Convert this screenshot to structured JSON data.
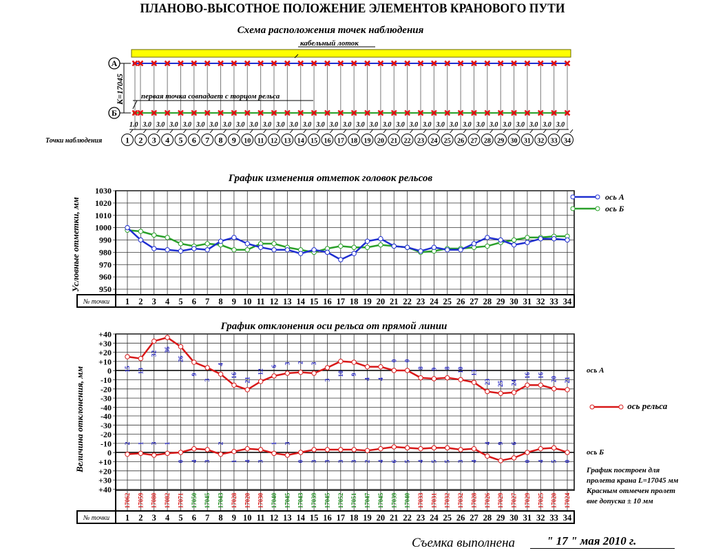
{
  "header": {
    "title": "ПЛАНОВО-ВЫСОТНОЕ ПОЛОЖЕНИЕ ЭЛЕМЕНТОВ КРАНОВОГО ПУТИ"
  },
  "scheme": {
    "title": "Схема расположения точек наблюдения",
    "cable_tray_label": "кабельный лоток",
    "first_point_note": "первая точка совпадает с  торцом рельса",
    "axis_a_label": "А",
    "axis_b_label": "Б",
    "span_label": "К=17045",
    "points_label": "Точки наблюдения",
    "spacings": [
      "1.0",
      "3.0",
      "3.0",
      "3.0",
      "3.0",
      "3.0",
      "3.0",
      "3.0",
      "3.0",
      "3.0",
      "3.0",
      "3.0",
      "3.0",
      "3.0",
      "3.0",
      "3.0",
      "3.0",
      "3.0",
      "3.0",
      "3.0",
      "3.0",
      "3.0",
      "3.0",
      "3.0",
      "3.0",
      "3.0",
      "3.0",
      "3.0",
      "3.0",
      "3.0",
      "3.0",
      "3.0",
      "3.0"
    ],
    "colors": {
      "tray": "#ffff00",
      "rail_a": "#1f2fd0",
      "rail_b": "#2aa02a",
      "marker": "#e01010"
    }
  },
  "points": [
    "1",
    "2",
    "3",
    "4",
    "5",
    "6",
    "7",
    "8",
    "9",
    "10",
    "11",
    "12",
    "13",
    "14",
    "15",
    "16",
    "17",
    "18",
    "19",
    "20",
    "21",
    "22",
    "23",
    "24",
    "25",
    "26",
    "27",
    "28",
    "29",
    "30",
    "31",
    "32",
    "33",
    "34"
  ],
  "chart_data": [
    {
      "type": "line",
      "title": "График изменения отметок головок рельсов",
      "xlabel": "№ точки",
      "ylabel": "Условные отметки, мм",
      "ylim": [
        950,
        1030
      ],
      "yticks": [
        1030,
        1020,
        1010,
        1000,
        990,
        980,
        970,
        960,
        950
      ],
      "grid": true,
      "legend_position": "right-top",
      "categories": [
        "1",
        "2",
        "3",
        "4",
        "5",
        "6",
        "7",
        "8",
        "9",
        "10",
        "11",
        "12",
        "13",
        "14",
        "15",
        "16",
        "17",
        "18",
        "19",
        "20",
        "21",
        "22",
        "23",
        "24",
        "25",
        "26",
        "27",
        "28",
        "29",
        "30",
        "31",
        "32",
        "33",
        "34"
      ],
      "series": [
        {
          "name": "ось А",
          "color": "#1f2fd0",
          "values": [
            1000,
            990,
            983,
            982,
            981,
            983,
            982,
            989,
            992,
            987,
            984,
            982,
            982,
            979,
            982,
            980,
            974,
            979,
            989,
            991,
            985,
            984,
            981,
            984,
            982,
            982,
            987,
            992,
            990,
            986,
            988,
            991,
            991,
            990
          ]
        },
        {
          "name": "ось Б",
          "color": "#2aa02a",
          "values": [
            998,
            997,
            994,
            992,
            987,
            985,
            987,
            986,
            982,
            982,
            987,
            987,
            984,
            982,
            980,
            983,
            985,
            984,
            984,
            986,
            985,
            984,
            980,
            981,
            983,
            983,
            984,
            985,
            988,
            990,
            992,
            992,
            993,
            993
          ]
        }
      ]
    },
    {
      "type": "line",
      "title": "График отклонения оси рельса от прямой линии",
      "xlabel": "№ точки",
      "ylabel": "Величина отклонения, мм",
      "grid": true,
      "panels": [
        {
          "name": "ось А",
          "yticks": [
            "+40",
            "+30",
            "+20",
            "+10",
            "0",
            "-10",
            "-20",
            "-30",
            "-40"
          ],
          "ylim": [
            -40,
            40
          ]
        },
        {
          "name": "ось Б",
          "yticks": [
            "-40",
            "-30",
            "-20",
            "-10",
            "0",
            "+10",
            "+20",
            "+30",
            "+40"
          ],
          "ylim": [
            -40,
            40
          ]
        }
      ],
      "categories": [
        "1",
        "2",
        "3",
        "4",
        "5",
        "6",
        "7",
        "8",
        "9",
        "10",
        "11",
        "12",
        "13",
        "14",
        "15",
        "16",
        "17",
        "18",
        "19",
        "20",
        "21",
        "22",
        "23",
        "24",
        "25",
        "26",
        "27",
        "28",
        "29",
        "30",
        "31",
        "32",
        "33",
        "34"
      ],
      "series": [
        {
          "name": "ось А",
          "color": "#d81818",
          "values": [
            15,
            13,
            32,
            36,
            26,
            9,
            3,
            -4,
            -16,
            -21,
            -12,
            -6,
            -3,
            -2,
            -3,
            3,
            10,
            9,
            4,
            4,
            0,
            0,
            -8,
            -9,
            -8,
            -10,
            -13,
            -23,
            -25,
            -24,
            -16,
            -16,
            -20,
            -21
          ],
          "labels": [
            "15",
            "13",
            "32",
            "36",
            "26",
            "9",
            "3",
            "4",
            "16",
            "21",
            "12",
            "6",
            "3",
            "2",
            "3",
            "3",
            "10",
            "9",
            "4",
            "4",
            "0",
            "0",
            "8",
            "9",
            "8",
            "10",
            "13",
            "23",
            "25",
            "24",
            "16",
            "16",
            "20",
            "21"
          ]
        },
        {
          "name": "ось Б",
          "color": "#d81818",
          "values": [
            2,
            1,
            3,
            1,
            0,
            -4,
            -3,
            2,
            -1,
            -4,
            -3,
            1,
            3,
            0,
            -3,
            -3,
            -3,
            -3,
            -2,
            -4,
            -6,
            -5,
            -4,
            -5,
            -5,
            -3,
            -4,
            4,
            9,
            6,
            0,
            -4,
            -5,
            0
          ],
          "labels": [
            "2",
            "1",
            "3",
            "1",
            "0",
            "4",
            "3",
            "2",
            "1",
            "4",
            "3",
            "1",
            "3",
            "0",
            "3",
            "3",
            "3",
            "3",
            "2",
            "4",
            "6",
            "5",
            "4",
            "5",
            "5",
            "3",
            "4",
            "4",
            "9",
            "6",
            "0",
            "4",
            "5",
            "0"
          ]
        }
      ],
      "spans": [
        "17062",
        "17059",
        "17080",
        "17082",
        "17071",
        "17050",
        "17045",
        "17043",
        "17028",
        "17020",
        "17030",
        "17040",
        "17045",
        "17043",
        "17039",
        "17045",
        "17052",
        "17051",
        "17047",
        "17045",
        "17039",
        "17040",
        "17033",
        "17031",
        "17032",
        "17032",
        "17028",
        "17026",
        "17029",
        "17027",
        "17029",
        "17025",
        "17020",
        "17024"
      ],
      "span_out_of_tolerance": [
        true,
        true,
        true,
        true,
        true,
        false,
        false,
        false,
        true,
        true,
        true,
        false,
        false,
        false,
        false,
        false,
        false,
        false,
        false,
        false,
        false,
        false,
        true,
        true,
        true,
        true,
        true,
        true,
        true,
        true,
        true,
        true,
        true,
        true
      ],
      "legend": "ось рельса"
    }
  ],
  "elev_chart": {
    "title": "График изменения отметок головок рельсов",
    "ylabel": "Условные отметки, мм",
    "xlabel": "№ точки",
    "legend_a": "ось А",
    "legend_b": "ось Б"
  },
  "dev_chart": {
    "title": "График отклонения оси рельса от прямой линии",
    "ylabel": "Величина отклонения, мм",
    "xlabel": "№ точки",
    "axis_a": "ось А",
    "axis_b": "ось Б",
    "legend": "ось рельса",
    "note_lines": [
      "График построен для",
      "пролета крана L=17045 мм",
      "Красным отмечен пролет",
      "вне допуска ± 10 мм"
    ],
    "colors": {
      "in_tol": "#1a8a1a",
      "out_tol": "#d81818",
      "label": "#2020c0"
    }
  },
  "footer": {
    "survey_label": "Съемка выполнена",
    "survey_date": "\" 17 \" мая 2010 г."
  }
}
